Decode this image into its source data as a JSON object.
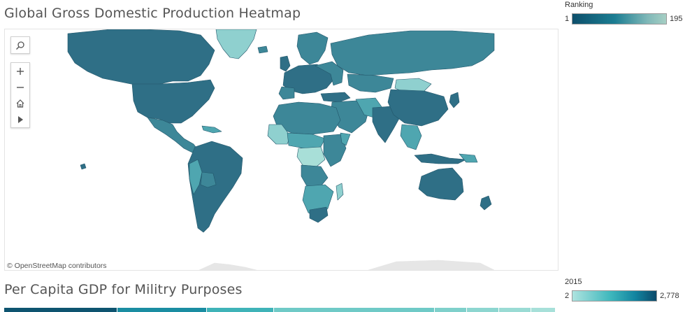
{
  "titles": {
    "map": "Global Gross Domestic Production Heatmap",
    "secondary": "Per Capita GDP for Militry Purposes"
  },
  "map": {
    "attribution": "© OpenStreetMap contributors",
    "tools": [
      "search-icon",
      "zoom-in-icon",
      "zoom-out-icon",
      "home-icon",
      "play-icon"
    ],
    "colors": {
      "dark": "#2f6f86",
      "mid": "#3d8798",
      "teal": "#4fa6b0",
      "light": "#8fd0cf",
      "pale": "#a8dfd8",
      "border": "#22566a"
    }
  },
  "legend_rank": {
    "title": "Ranking",
    "min": "1",
    "max": "195"
  },
  "legend_2015": {
    "title": "2015",
    "min": "2",
    "max": "2,778"
  },
  "strip_colors": [
    "#0e5470",
    "#1a8da2",
    "#3fb3b8",
    "#6fcac7",
    "#7fd0cb",
    "#8dd6d0",
    "#9adbd4",
    "#a7e0d9"
  ]
}
